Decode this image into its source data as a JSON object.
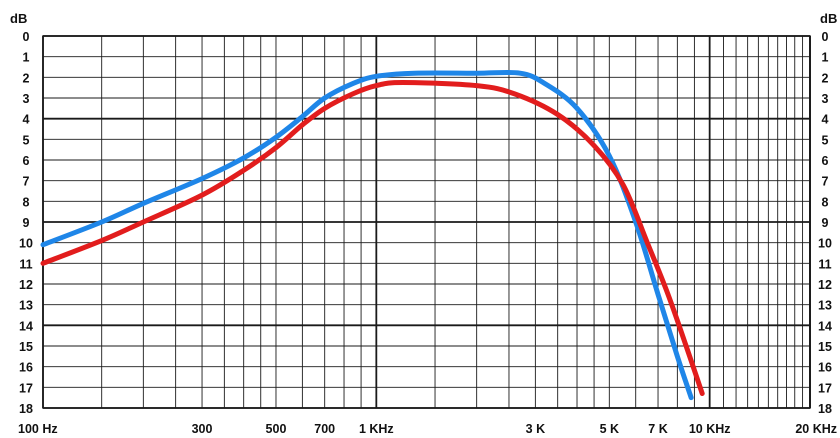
{
  "chart_data": {
    "type": "line",
    "title": "",
    "xlabel": "",
    "ylabel": "",
    "x_scale": "log",
    "xlim": [
      100,
      20000
    ],
    "y_axis_label_text": "dB",
    "y_orientation": "attenuation increases downward",
    "ylim": [
      0,
      18
    ],
    "x_tick_values": [
      100,
      300,
      500,
      700,
      1000,
      3000,
      5000,
      7000,
      10000,
      20000
    ],
    "x_tick_labels": [
      "100 Hz",
      "300",
      "500",
      "700",
      "1 KHz",
      "3 K",
      "5 K",
      "7 K",
      "10 KHz",
      "20 KHz"
    ],
    "y_tick_values": [
      0,
      1,
      2,
      3,
      4,
      5,
      6,
      7,
      8,
      9,
      10,
      11,
      12,
      13,
      14,
      15,
      16,
      17,
      18
    ],
    "y_tick_labels": [
      "0",
      "1",
      "2",
      "3",
      "4",
      "5",
      "6",
      "7",
      "8",
      "9",
      "10",
      "11",
      "12",
      "13",
      "14",
      "15",
      "16",
      "17",
      "18"
    ],
    "grid": true,
    "legend": "none",
    "series": [
      {
        "color": "#1f86e8",
        "points": [
          {
            "x": 100,
            "y": 10.1
          },
          {
            "x": 150,
            "y": 9.0
          },
          {
            "x": 200,
            "y": 8.1
          },
          {
            "x": 300,
            "y": 6.9
          },
          {
            "x": 400,
            "y": 5.9
          },
          {
            "x": 500,
            "y": 4.9
          },
          {
            "x": 600,
            "y": 3.9
          },
          {
            "x": 700,
            "y": 3.0
          },
          {
            "x": 850,
            "y": 2.3
          },
          {
            "x": 1000,
            "y": 1.95
          },
          {
            "x": 1300,
            "y": 1.8
          },
          {
            "x": 2000,
            "y": 1.8
          },
          {
            "x": 2700,
            "y": 1.8
          },
          {
            "x": 3200,
            "y": 2.3
          },
          {
            "x": 4000,
            "y": 3.5
          },
          {
            "x": 5000,
            "y": 5.8
          },
          {
            "x": 6000,
            "y": 9.0
          },
          {
            "x": 7000,
            "y": 12.5
          },
          {
            "x": 8000,
            "y": 15.5
          },
          {
            "x": 8800,
            "y": 17.5
          }
        ]
      },
      {
        "color": "#e21d1d",
        "points": [
          {
            "x": 100,
            "y": 11.0
          },
          {
            "x": 150,
            "y": 9.9
          },
          {
            "x": 200,
            "y": 9.0
          },
          {
            "x": 300,
            "y": 7.7
          },
          {
            "x": 400,
            "y": 6.5
          },
          {
            "x": 500,
            "y": 5.4
          },
          {
            "x": 600,
            "y": 4.3
          },
          {
            "x": 700,
            "y": 3.5
          },
          {
            "x": 850,
            "y": 2.8
          },
          {
            "x": 1000,
            "y": 2.4
          },
          {
            "x": 1200,
            "y": 2.25
          },
          {
            "x": 2000,
            "y": 2.4
          },
          {
            "x": 2600,
            "y": 2.8
          },
          {
            "x": 3500,
            "y": 3.8
          },
          {
            "x": 4500,
            "y": 5.3
          },
          {
            "x": 5500,
            "y": 7.2
          },
          {
            "x": 6500,
            "y": 10.0
          },
          {
            "x": 7500,
            "y": 12.5
          },
          {
            "x": 8500,
            "y": 15.0
          },
          {
            "x": 9500,
            "y": 17.3
          }
        ]
      }
    ]
  }
}
